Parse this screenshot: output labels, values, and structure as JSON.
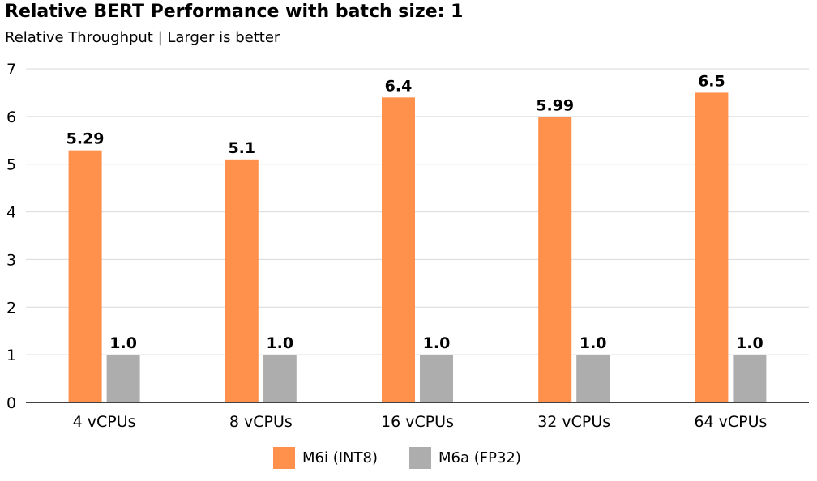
{
  "chart_data": {
    "type": "bar",
    "title": "Relative BERT Performance with batch size: 1",
    "subtitle": "Relative Throughput   |   Larger is better",
    "categories": [
      "4 vCPUs",
      "8 vCPUs",
      "16 vCPUs",
      "32 vCPUs",
      "64 vCPUs"
    ],
    "series": [
      {
        "name": "M6i (INT8)",
        "values": [
          5.29,
          5.1,
          6.4,
          5.99,
          6.5
        ],
        "labels": [
          "5.29",
          "5.1",
          "6.4",
          "5.99",
          "6.5"
        ],
        "color": "#FF914D"
      },
      {
        "name": "M6a (FP32)",
        "values": [
          1.0,
          1.0,
          1.0,
          1.0,
          1.0
        ],
        "labels": [
          "1.0",
          "1.0",
          "1.0",
          "1.0",
          "1.0"
        ],
        "color": "#ADADAD"
      }
    ],
    "yticks": [
      "0",
      "1",
      "2",
      "3",
      "4",
      "5",
      "6",
      "7"
    ],
    "ylim": [
      0,
      7
    ],
    "grid": true,
    "legend_position": "bottom"
  }
}
